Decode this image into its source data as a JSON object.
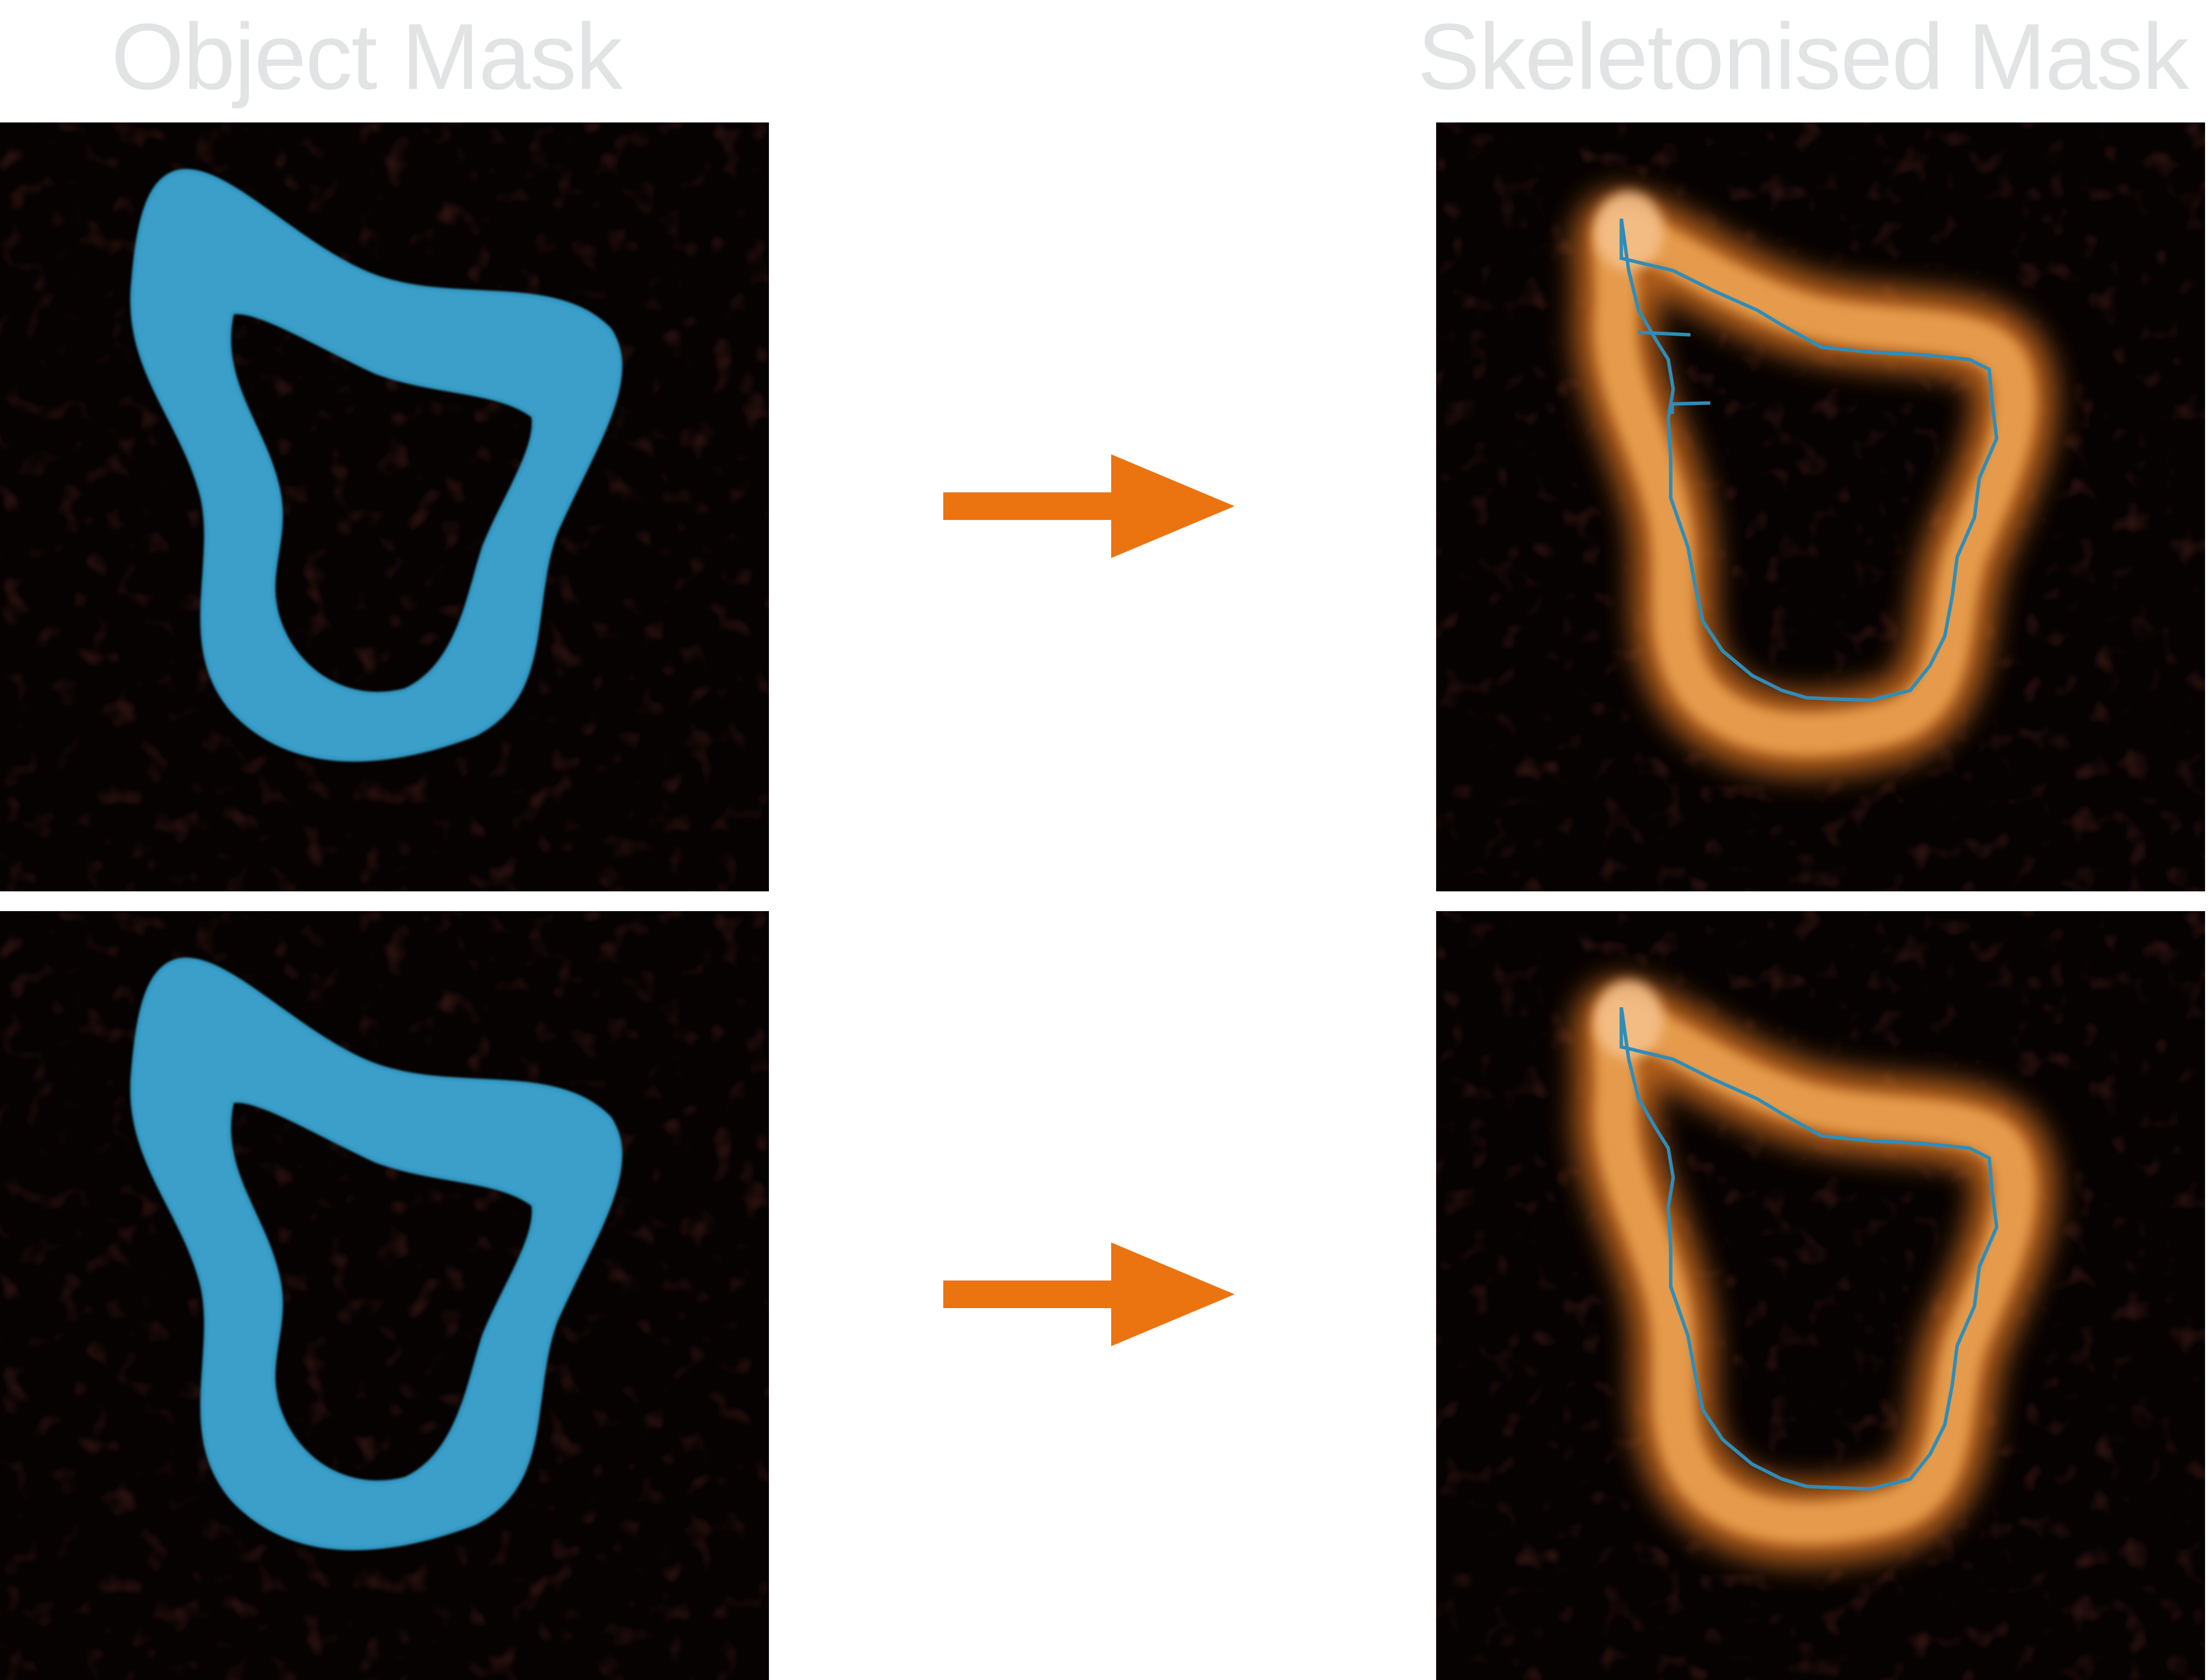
{
  "titles": {
    "left": "Object Mask",
    "right": "Skeletonised Mask"
  },
  "colors": {
    "title_text": "#e2e3e4",
    "panel_background": "#070202",
    "mask_fill": "#3a9fca",
    "mask_fill_dark": "#2e86b4",
    "ring_glow": "#c77a2e",
    "ring_core": "#f0b777",
    "skeleton_line": "#2f8db8",
    "arrow": "#ec7410"
  },
  "icons": {
    "arrow": "right-arrow-icon"
  }
}
